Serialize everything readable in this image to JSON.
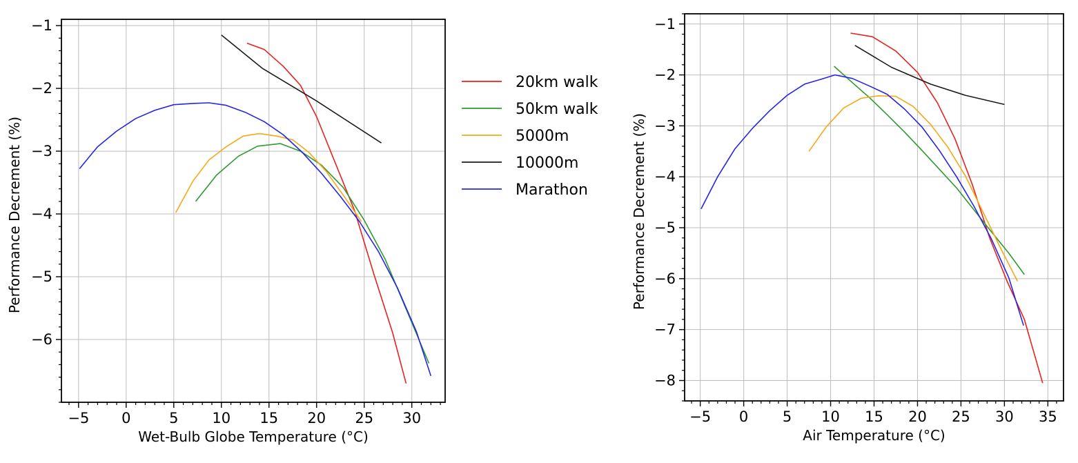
{
  "chart_data": [
    {
      "type": "line",
      "title": "",
      "xlabel": "Wet-Bulb Globe Temperature (°C)",
      "ylabel": "Performance Decrement (%)",
      "xlim": [
        -6.8,
        33.5
      ],
      "ylim": [
        -7.0,
        -0.9
      ],
      "xticks": [
        -5,
        0,
        5,
        10,
        15,
        20,
        25,
        30
      ],
      "yticks": [
        -6,
        -5,
        -4,
        -3,
        -2,
        -1
      ],
      "grid": true,
      "series": [
        {
          "name": "20km walk",
          "color": "#e8211d",
          "x": [
            12.7,
            14.5,
            16.5,
            18.3,
            20.0,
            22.0,
            24.0,
            26.0,
            28.0,
            29.4
          ],
          "y": [
            -1.28,
            -1.38,
            -1.65,
            -1.95,
            -2.45,
            -3.2,
            -3.95,
            -4.95,
            -5.9,
            -6.7
          ]
        },
        {
          "name": "50km walk",
          "color": "#2e9a2e",
          "x": [
            7.3,
            9.5,
            11.8,
            13.8,
            16.2,
            18.3,
            20.5,
            22.8,
            25.0,
            27.2,
            29.3,
            31.8
          ],
          "y": [
            -3.8,
            -3.38,
            -3.08,
            -2.92,
            -2.88,
            -3.0,
            -3.22,
            -3.58,
            -4.1,
            -4.72,
            -5.48,
            -6.38
          ]
        },
        {
          "name": "5000m",
          "color": "#f5a818",
          "x": [
            5.2,
            7.0,
            8.7,
            10.5,
            12.3,
            14.0,
            15.8,
            17.5,
            19.2,
            21.0,
            22.8,
            24.7
          ],
          "y": [
            -3.98,
            -3.48,
            -3.14,
            -2.93,
            -2.76,
            -2.72,
            -2.76,
            -2.82,
            -3.02,
            -3.32,
            -3.7,
            -4.12
          ]
        },
        {
          "name": "10000m",
          "color": "#1a1a1a",
          "x": [
            10.0,
            14.3,
            20.0,
            26.8
          ],
          "y": [
            -1.15,
            -1.68,
            -2.2,
            -2.87
          ]
        },
        {
          "name": "Marathon",
          "color": "#2424e8",
          "x": [
            -4.9,
            -3.0,
            -1.0,
            1.0,
            3.0,
            5.0,
            7.0,
            8.7,
            10.5,
            12.5,
            14.5,
            16.5,
            18.5,
            20.5,
            22.5,
            24.5,
            26.5,
            28.5,
            30.5,
            32.0
          ],
          "y": [
            -3.28,
            -2.93,
            -2.68,
            -2.48,
            -2.35,
            -2.26,
            -2.24,
            -2.23,
            -2.27,
            -2.38,
            -2.53,
            -2.74,
            -3.02,
            -3.35,
            -3.72,
            -4.12,
            -4.6,
            -5.18,
            -5.88,
            -6.58
          ]
        }
      ]
    },
    {
      "type": "line",
      "title": "",
      "xlabel": "Air Temperature (°C)",
      "ylabel": "Performance Decrement (%)",
      "xlim": [
        -6.8,
        36.8
      ],
      "ylim": [
        -8.4,
        -0.8
      ],
      "xticks": [
        -5,
        0,
        5,
        10,
        15,
        20,
        25,
        30,
        35
      ],
      "yticks": [
        -8,
        -7,
        -6,
        -5,
        -4,
        -3,
        -2,
        -1
      ],
      "grid": true,
      "series": [
        {
          "name": "20km walk",
          "color": "#e8211d",
          "x": [
            12.3,
            14.8,
            17.5,
            20.0,
            22.3,
            24.3,
            26.3,
            28.3,
            30.3,
            32.3,
            34.4
          ],
          "y": [
            -1.18,
            -1.25,
            -1.53,
            -1.95,
            -2.55,
            -3.25,
            -4.15,
            -5.2,
            -6.05,
            -6.8,
            -8.05
          ]
        },
        {
          "name": "50km walk",
          "color": "#2e9a2e",
          "x": [
            10.4,
            12.5,
            14.5,
            16.5,
            18.5,
            20.5,
            22.5,
            24.5,
            26.5,
            28.5,
            30.5,
            32.3
          ],
          "y": [
            -1.83,
            -2.15,
            -2.45,
            -2.78,
            -3.12,
            -3.48,
            -3.85,
            -4.22,
            -4.65,
            -5.08,
            -5.5,
            -5.92
          ]
        },
        {
          "name": "5000m",
          "color": "#f5a818",
          "x": [
            7.5,
            9.5,
            11.5,
            13.5,
            15.5,
            17.5,
            19.5,
            21.5,
            23.5,
            25.5,
            27.5,
            29.5,
            31.5
          ],
          "y": [
            -3.5,
            -3.02,
            -2.65,
            -2.46,
            -2.41,
            -2.42,
            -2.62,
            -2.97,
            -3.42,
            -3.98,
            -4.68,
            -5.38,
            -6.05
          ]
        },
        {
          "name": "10000m",
          "color": "#1a1a1a",
          "x": [
            12.8,
            17.0,
            21.5,
            25.5,
            30.0
          ],
          "y": [
            -1.42,
            -1.85,
            -2.18,
            -2.4,
            -2.58
          ]
        },
        {
          "name": "Marathon",
          "color": "#2424e8",
          "x": [
            -4.9,
            -3.0,
            -1.0,
            1.0,
            3.0,
            5.0,
            7.0,
            9.0,
            10.5,
            12.5,
            14.5,
            16.5,
            18.5,
            20.5,
            22.5,
            24.5,
            26.5,
            28.5,
            30.5,
            32.2
          ],
          "y": [
            -4.63,
            -4.0,
            -3.45,
            -3.05,
            -2.7,
            -2.4,
            -2.18,
            -2.08,
            -2.0,
            -2.07,
            -2.22,
            -2.38,
            -2.67,
            -3.02,
            -3.48,
            -4.0,
            -4.58,
            -5.22,
            -5.98,
            -6.92
          ]
        }
      ]
    }
  ],
  "legend": {
    "placement": "between-panels",
    "items": [
      {
        "label": "20km walk",
        "color": "#e8211d"
      },
      {
        "label": "50km walk",
        "color": "#2e9a2e"
      },
      {
        "label": "5000m",
        "color": "#f5a818"
      },
      {
        "label": "10000m",
        "color": "#1a1a1a"
      },
      {
        "label": "Marathon",
        "color": "#2424e8"
      }
    ]
  }
}
